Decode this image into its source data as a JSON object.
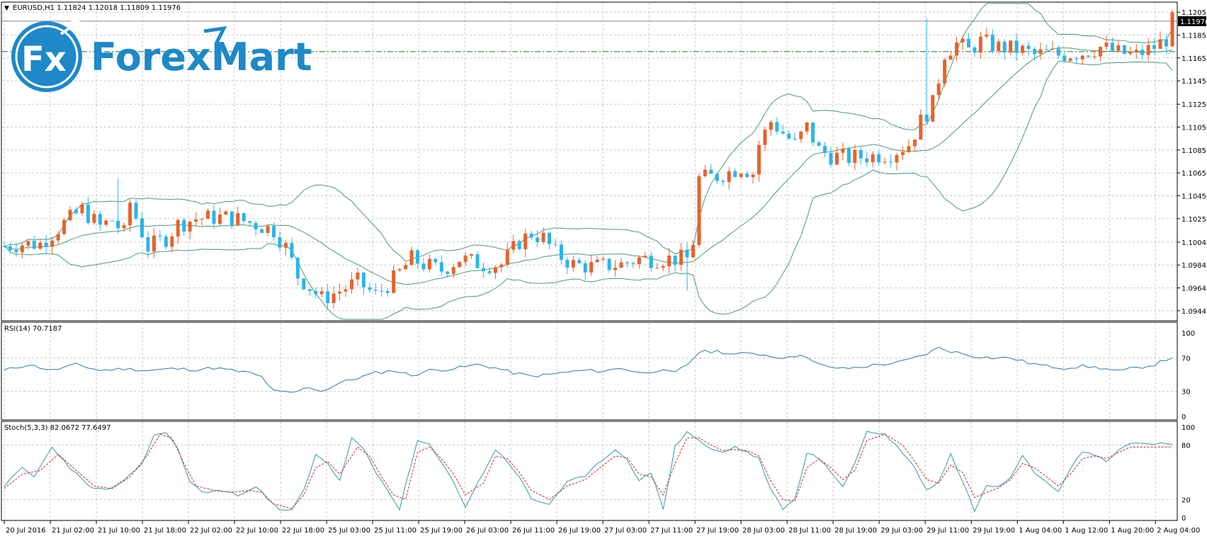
{
  "header": {
    "symbol_line": "EURUSD,H1  1.11824 1.12018 1.11809 1.11976",
    "dropdown_glyph": "▼"
  },
  "logo": {
    "badge_text": "Fx",
    "brand_text": "ForexMart",
    "color": "#1e88c8"
  },
  "price_axis": {
    "labels": [
      "1.12055",
      "1.11855",
      "1.11655",
      "1.11455",
      "1.11250",
      "1.11050",
      "1.10850",
      "1.10650",
      "1.10450",
      "1.10250",
      "1.10045",
      "1.09845",
      "1.09645",
      "1.09445"
    ],
    "current_price": "1.11976",
    "ylim": [
      1.0937,
      1.1213
    ]
  },
  "rsi_panel": {
    "label": "RSI(14) 70.7187",
    "levels": [
      "100",
      "70",
      "30",
      "0"
    ],
    "ylim": [
      0,
      100
    ],
    "guide_levels": [
      70,
      30
    ]
  },
  "stoch_panel": {
    "label": "Stoch(5,3,3) 82.0672 77.6497",
    "levels": [
      "100",
      "80",
      "20",
      "0"
    ],
    "ylim": [
      0,
      100
    ],
    "guide_levels": [
      80,
      20
    ]
  },
  "time_axis": {
    "labels": [
      "20 Jul 2016",
      "21 Jul 02:00",
      "21 Jul 10:00",
      "21 Jul 18:00",
      "22 Jul 02:00",
      "22 Jul 10:00",
      "22 Jul 18:00",
      "25 Jul 03:00",
      "25 Jul 11:00",
      "25 Jul 19:00",
      "26 Jul 03:00",
      "26 Jul 11:00",
      "26 Jul 19:00",
      "27 Jul 03:00",
      "27 Jul 11:00",
      "27 Jul 19:00",
      "28 Jul 03:00",
      "28 Jul 11:00",
      "28 Jul 19:00",
      "29 Jul 03:00",
      "29 Jul 11:00",
      "29 Jul 19:00",
      "1 Aug 04:00",
      "1 Aug 12:00",
      "1 Aug 20:00",
      "2 Aug 04:00"
    ]
  },
  "colors": {
    "bull": "#e8622a",
    "bear": "#2bb5e8",
    "bands": "#4a9a7a",
    "rsi_line": "#2a7aa8",
    "stoch_main": "#2e9aa8",
    "stoch_signal": "#d42020",
    "grid": "#c8c8c8",
    "price_line": "#2a6a2a"
  },
  "chart_data": {
    "type": "candlestick",
    "timeframe": "H1",
    "anchors_close": [
      [
        0,
        1.1001
      ],
      [
        3,
        1.1003
      ],
      [
        6,
        1.1003
      ],
      [
        10,
        1.1021
      ],
      [
        13,
        1.1033
      ],
      [
        16,
        1.1018
      ],
      [
        18,
        1.1024
      ],
      [
        20,
        1.1012
      ],
      [
        21,
        1.1039
      ],
      [
        24,
        1.1
      ],
      [
        27,
        1.1008
      ],
      [
        29,
        1.102
      ],
      [
        32,
        1.1025
      ],
      [
        35,
        1.1026
      ],
      [
        38,
        1.1026
      ],
      [
        40,
        1.1023
      ],
      [
        42,
        1.102
      ],
      [
        45,
        1.1015
      ],
      [
        47,
        1.1
      ],
      [
        49,
        1.0975
      ],
      [
        51,
        1.0965
      ],
      [
        53,
        1.0955
      ],
      [
        56,
        1.0962
      ],
      [
        59,
        1.097
      ],
      [
        62,
        1.0958
      ],
      [
        65,
        1.0972
      ],
      [
        68,
        1.099
      ],
      [
        70,
        1.0985
      ],
      [
        73,
        1.098
      ],
      [
        76,
        1.099
      ],
      [
        80,
        1.0985
      ],
      [
        83,
        1.0985
      ],
      [
        86,
        1.1005
      ],
      [
        88,
        1.1012
      ],
      [
        90,
        1.1008
      ],
      [
        92,
        1.0995
      ],
      [
        95,
        1.0985
      ],
      [
        98,
        1.0983
      ],
      [
        103,
        1.0985
      ],
      [
        106,
        1.099
      ],
      [
        110,
        1.099
      ],
      [
        114,
        1.099
      ],
      [
        115,
        1.1005
      ],
      [
        116,
        1.106
      ],
      [
        119,
        1.1062
      ],
      [
        123,
        1.107
      ],
      [
        125,
        1.1065
      ],
      [
        126,
        1.109
      ],
      [
        128,
        1.111
      ],
      [
        130,
        1.11
      ],
      [
        132,
        1.109
      ],
      [
        134,
        1.1105
      ],
      [
        136,
        1.1085
      ],
      [
        138,
        1.108
      ],
      [
        141,
        1.1078
      ],
      [
        145,
        1.108
      ],
      [
        148,
        1.1082
      ],
      [
        151,
        1.109
      ],
      [
        153,
        1.111
      ],
      [
        155,
        1.1125
      ],
      [
        157,
        1.117
      ],
      [
        159,
        1.1178
      ],
      [
        161,
        1.1172
      ],
      [
        163,
        1.118
      ],
      [
        166,
        1.1175
      ],
      [
        170,
        1.1172
      ],
      [
        172,
        1.1168
      ],
      [
        174,
        1.117
      ],
      [
        176,
        1.1168
      ],
      [
        180,
        1.117
      ],
      [
        183,
        1.1175
      ],
      [
        186,
        1.117
      ],
      [
        189,
        1.1168
      ],
      [
        192,
        1.1175
      ],
      [
        194,
        1.1182
      ],
      [
        195,
        1.1198
      ]
    ],
    "rsi_anchors": [
      [
        0,
        55
      ],
      [
        4,
        62
      ],
      [
        8,
        55
      ],
      [
        12,
        62
      ],
      [
        16,
        55
      ],
      [
        20,
        57
      ],
      [
        24,
        55
      ],
      [
        28,
        57
      ],
      [
        32,
        56
      ],
      [
        35,
        58
      ],
      [
        38,
        55
      ],
      [
        41,
        52
      ],
      [
        43,
        47
      ],
      [
        45,
        30
      ],
      [
        48,
        28
      ],
      [
        51,
        35
      ],
      [
        53,
        30
      ],
      [
        56,
        40
      ],
      [
        59,
        46
      ],
      [
        62,
        52
      ],
      [
        65,
        55
      ],
      [
        68,
        49
      ],
      [
        71,
        55
      ],
      [
        75,
        57
      ],
      [
        79,
        62
      ],
      [
        82,
        58
      ],
      [
        85,
        52
      ],
      [
        88,
        48
      ],
      [
        91,
        50
      ],
      [
        94,
        53
      ],
      [
        97,
        55
      ],
      [
        100,
        54
      ],
      [
        103,
        58
      ],
      [
        106,
        52
      ],
      [
        109,
        55
      ],
      [
        112,
        52
      ],
      [
        114,
        62
      ],
      [
        116,
        77
      ],
      [
        119,
        78
      ],
      [
        122,
        74
      ],
      [
        125,
        76
      ],
      [
        128,
        72
      ],
      [
        131,
        70
      ],
      [
        133,
        75
      ],
      [
        135,
        65
      ],
      [
        137,
        60
      ],
      [
        140,
        57
      ],
      [
        143,
        59
      ],
      [
        146,
        62
      ],
      [
        149,
        64
      ],
      [
        152,
        70
      ],
      [
        154,
        75
      ],
      [
        156,
        82
      ],
      [
        158,
        78
      ],
      [
        160,
        75
      ],
      [
        162,
        72
      ],
      [
        165,
        70
      ],
      [
        168,
        70
      ],
      [
        171,
        64
      ],
      [
        174,
        60
      ],
      [
        177,
        58
      ],
      [
        180,
        60
      ],
      [
        183,
        58
      ],
      [
        186,
        54
      ],
      [
        189,
        58
      ],
      [
        192,
        62
      ],
      [
        195,
        71
      ]
    ],
    "stoch_main_anchors": [
      [
        0,
        35
      ],
      [
        3,
        55
      ],
      [
        5,
        45
      ],
      [
        8,
        78
      ],
      [
        11,
        55
      ],
      [
        14,
        35
      ],
      [
        17,
        30
      ],
      [
        20,
        40
      ],
      [
        23,
        60
      ],
      [
        25,
        90
      ],
      [
        27,
        95
      ],
      [
        29,
        75
      ],
      [
        31,
        40
      ],
      [
        33,
        28
      ],
      [
        36,
        30
      ],
      [
        39,
        25
      ],
      [
        42,
        35
      ],
      [
        44,
        20
      ],
      [
        46,
        8
      ],
      [
        48,
        8
      ],
      [
        50,
        30
      ],
      [
        52,
        70
      ],
      [
        54,
        60
      ],
      [
        56,
        40
      ],
      [
        58,
        88
      ],
      [
        60,
        75
      ],
      [
        62,
        50
      ],
      [
        64,
        30
      ],
      [
        66,
        10
      ],
      [
        69,
        85
      ],
      [
        71,
        80
      ],
      [
        73,
        60
      ],
      [
        75,
        40
      ],
      [
        77,
        12
      ],
      [
        80,
        50
      ],
      [
        82,
        75
      ],
      [
        84,
        62
      ],
      [
        86,
        45
      ],
      [
        88,
        20
      ],
      [
        91,
        15
      ],
      [
        94,
        40
      ],
      [
        97,
        45
      ],
      [
        100,
        65
      ],
      [
        102,
        75
      ],
      [
        104,
        65
      ],
      [
        106,
        40
      ],
      [
        108,
        50
      ],
      [
        110,
        10
      ],
      [
        112,
        78
      ],
      [
        114,
        95
      ],
      [
        116,
        85
      ],
      [
        118,
        75
      ],
      [
        120,
        72
      ],
      [
        122,
        78
      ],
      [
        124,
        72
      ],
      [
        126,
        65
      ],
      [
        128,
        30
      ],
      [
        130,
        10
      ],
      [
        132,
        20
      ],
      [
        134,
        72
      ],
      [
        136,
        65
      ],
      [
        138,
        50
      ],
      [
        140,
        35
      ],
      [
        142,
        60
      ],
      [
        144,
        95
      ],
      [
        147,
        92
      ],
      [
        150,
        72
      ],
      [
        152,
        55
      ],
      [
        154,
        30
      ],
      [
        156,
        40
      ],
      [
        158,
        70
      ],
      [
        160,
        40
      ],
      [
        162,
        8
      ],
      [
        164,
        35
      ],
      [
        166,
        35
      ],
      [
        168,
        45
      ],
      [
        170,
        70
      ],
      [
        172,
        50
      ],
      [
        174,
        40
      ],
      [
        176,
        30
      ],
      [
        178,
        55
      ],
      [
        180,
        72
      ],
      [
        182,
        70
      ],
      [
        184,
        62
      ],
      [
        186,
        75
      ],
      [
        188,
        82
      ]
    ],
    "stoch_signal_anchors": [
      [
        0,
        32
      ],
      [
        3,
        48
      ],
      [
        6,
        52
      ],
      [
        9,
        70
      ],
      [
        12,
        52
      ],
      [
        15,
        35
      ],
      [
        18,
        32
      ],
      [
        21,
        45
      ],
      [
        24,
        70
      ],
      [
        26,
        92
      ],
      [
        28,
        88
      ],
      [
        30,
        60
      ],
      [
        32,
        35
      ],
      [
        35,
        30
      ],
      [
        38,
        28
      ],
      [
        41,
        30
      ],
      [
        43,
        28
      ],
      [
        45,
        15
      ],
      [
        48,
        10
      ],
      [
        50,
        25
      ],
      [
        52,
        55
      ],
      [
        54,
        62
      ],
      [
        56,
        48
      ],
      [
        59,
        78
      ],
      [
        61,
        68
      ],
      [
        63,
        45
      ],
      [
        65,
        25
      ],
      [
        67,
        20
      ],
      [
        69,
        72
      ],
      [
        71,
        78
      ],
      [
        73,
        65
      ],
      [
        75,
        48
      ],
      [
        77,
        25
      ],
      [
        80,
        38
      ],
      [
        82,
        68
      ],
      [
        84,
        65
      ],
      [
        86,
        50
      ],
      [
        88,
        30
      ],
      [
        91,
        20
      ],
      [
        94,
        35
      ],
      [
        97,
        42
      ],
      [
        100,
        58
      ],
      [
        102,
        68
      ],
      [
        104,
        66
      ],
      [
        106,
        48
      ],
      [
        108,
        45
      ],
      [
        110,
        25
      ],
      [
        112,
        60
      ],
      [
        114,
        88
      ],
      [
        116,
        88
      ],
      [
        118,
        80
      ],
      [
        120,
        74
      ],
      [
        122,
        75
      ],
      [
        124,
        74
      ],
      [
        126,
        68
      ],
      [
        128,
        40
      ],
      [
        130,
        20
      ],
      [
        132,
        18
      ],
      [
        134,
        55
      ],
      [
        136,
        65
      ],
      [
        138,
        55
      ],
      [
        140,
        42
      ],
      [
        142,
        52
      ],
      [
        144,
        85
      ],
      [
        147,
        92
      ],
      [
        150,
        80
      ],
      [
        152,
        62
      ],
      [
        154,
        42
      ],
      [
        156,
        38
      ],
      [
        158,
        58
      ],
      [
        160,
        50
      ],
      [
        162,
        22
      ],
      [
        164,
        28
      ],
      [
        166,
        33
      ],
      [
        168,
        42
      ],
      [
        170,
        60
      ],
      [
        172,
        55
      ],
      [
        174,
        45
      ],
      [
        176,
        35
      ],
      [
        178,
        48
      ],
      [
        180,
        65
      ],
      [
        182,
        68
      ],
      [
        184,
        65
      ],
      [
        186,
        72
      ],
      [
        188,
        78
      ]
    ]
  }
}
